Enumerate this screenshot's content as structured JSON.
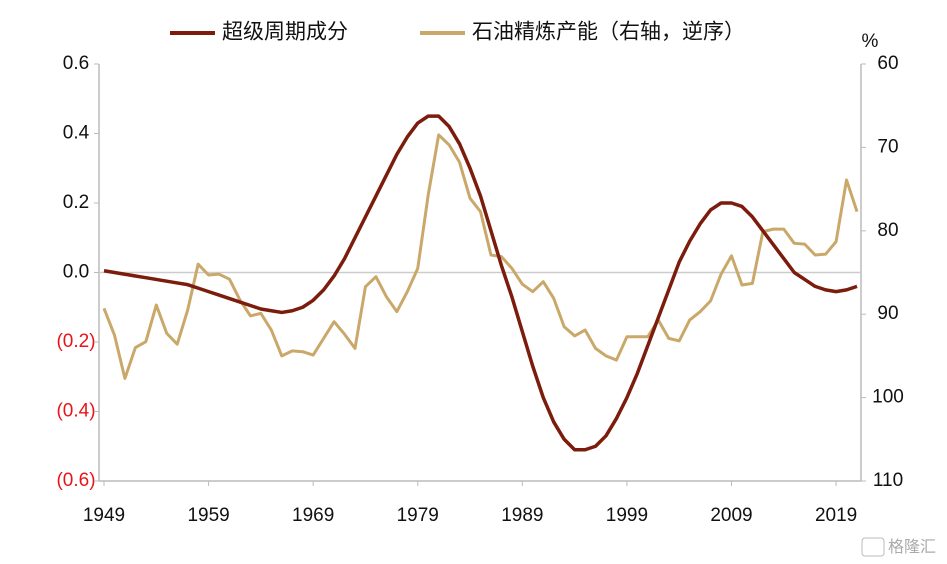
{
  "chart_data": {
    "type": "line",
    "x": [
      1949,
      1950,
      1951,
      1952,
      1953,
      1954,
      1955,
      1956,
      1957,
      1958,
      1959,
      1960,
      1961,
      1962,
      1963,
      1964,
      1965,
      1966,
      1967,
      1968,
      1969,
      1970,
      1971,
      1972,
      1973,
      1974,
      1975,
      1976,
      1977,
      1978,
      1979,
      1980,
      1981,
      1982,
      1983,
      1984,
      1985,
      1986,
      1987,
      1988,
      1989,
      1990,
      1991,
      1992,
      1993,
      1994,
      1995,
      1996,
      1997,
      1998,
      1999,
      2000,
      2001,
      2002,
      2003,
      2004,
      2005,
      2006,
      2007,
      2008,
      2009,
      2010,
      2011,
      2012,
      2013,
      2014,
      2015,
      2016,
      2017,
      2018,
      2019,
      2020,
      2021
    ],
    "series": [
      {
        "name": "超级周期成分",
        "color": "#7b1c0c",
        "values": [
          0.005,
          0.0,
          -0.005,
          -0.01,
          -0.015,
          -0.02,
          -0.025,
          -0.03,
          -0.035,
          -0.045,
          -0.055,
          -0.065,
          -0.075,
          -0.085,
          -0.095,
          -0.105,
          -0.11,
          -0.115,
          -0.11,
          -0.1,
          -0.08,
          -0.05,
          -0.01,
          0.04,
          0.1,
          0.16,
          0.22,
          0.28,
          0.34,
          0.39,
          0.43,
          0.45,
          0.45,
          0.42,
          0.37,
          0.3,
          0.22,
          0.12,
          0.02,
          -0.07,
          -0.17,
          -0.27,
          -0.36,
          -0.43,
          -0.48,
          -0.51,
          -0.51,
          -0.5,
          -0.47,
          -0.42,
          -0.36,
          -0.29,
          -0.21,
          -0.13,
          -0.05,
          0.03,
          0.09,
          0.14,
          0.18,
          0.2,
          0.2,
          0.19,
          0.16,
          0.12,
          0.08,
          0.04,
          0.0,
          -0.02,
          -0.04,
          -0.05,
          -0.055,
          -0.05,
          -0.04
        ]
      },
      {
        "name": "石油精炼产能（右轴，逆序）",
        "color": "#c9a86a",
        "axis": "y2",
        "values": [
          89.3,
          92.5,
          97.7,
          94,
          93.3,
          88.9,
          92.3,
          93.6,
          89.5,
          84,
          85.3,
          85.2,
          85.8,
          88.3,
          90.2,
          89.9,
          91.9,
          95,
          94.4,
          94.5,
          94.9,
          92.9,
          90.9,
          92.4,
          94.1,
          86.7,
          85.5,
          87.9,
          89.7,
          87.3,
          84.5,
          75.7,
          68.5,
          69.7,
          71.8,
          76.1,
          77.7,
          82.9,
          83.1,
          84.5,
          86.4,
          87.3,
          86.1,
          88.1,
          91.5,
          92.6,
          91.9,
          94.1,
          95,
          95.5,
          92.7,
          92.7,
          92.7,
          90.7,
          92.9,
          93.2,
          90.7,
          89.7,
          88.4,
          85.2,
          83,
          86.5,
          86.3,
          80.1,
          79.8,
          79.8,
          81.5,
          81.6,
          82.9,
          82.8,
          81.3,
          73.9,
          77.7
        ]
      }
    ],
    "xlim": [
      1949,
      2021
    ],
    "xticks": [
      1949,
      1959,
      1969,
      1979,
      1989,
      1999,
      2009,
      2019
    ],
    "ylim": [
      -0.6,
      0.6
    ],
    "yticks": [
      {
        "value": -0.6,
        "label": "(0.6)"
      },
      {
        "value": -0.4,
        "label": "(0.4)"
      },
      {
        "value": -0.2,
        "label": "(0.2)"
      },
      {
        "value": 0,
        "label": "0.0"
      },
      0.2,
      0.4,
      0.6
    ],
    "negative_tick_color": "#e8141b",
    "y2label": "%",
    "y2lim": [
      60,
      110
    ],
    "y2_reversed": true,
    "y2ticks": [
      60,
      70,
      80,
      90,
      100,
      110
    ],
    "legend": "top",
    "watermark": "格隆汇"
  }
}
